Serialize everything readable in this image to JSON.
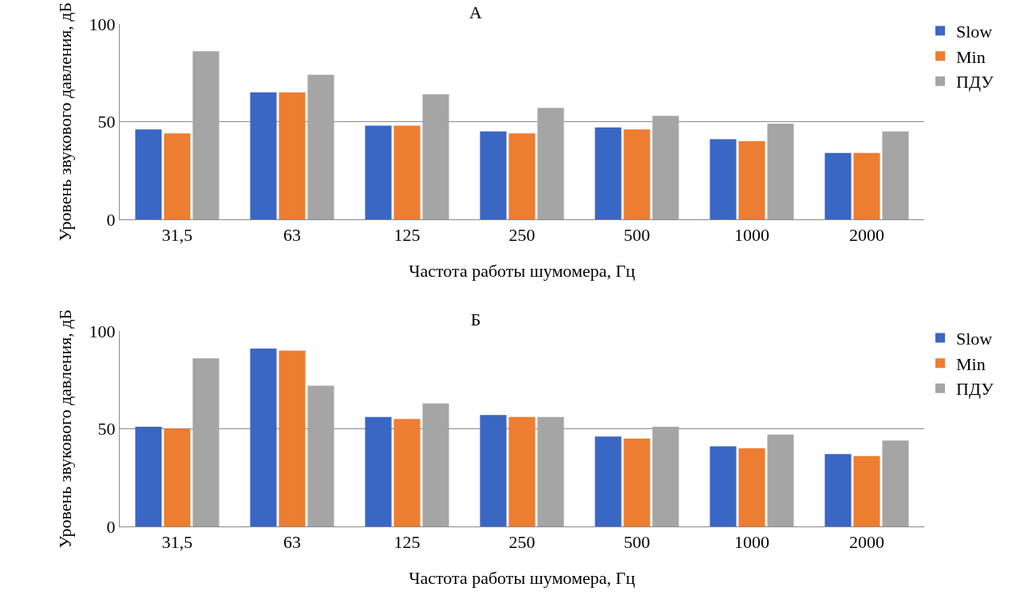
{
  "chart_data": [
    {
      "type": "bar",
      "title": "А",
      "xlabel": "Частота работы шумомера, Гц",
      "ylabel": "Уровень звукового давления, дБ",
      "categories": [
        "31,5",
        "63",
        "125",
        "250",
        "500",
        "1000",
        "2000"
      ],
      "ylim": [
        0,
        100
      ],
      "yticks": [
        0,
        50,
        100
      ],
      "grid": "y",
      "legend": "top right",
      "series": [
        {
          "name": "Slow",
          "color": "#3a66c4",
          "values": [
            46,
            65,
            48,
            45,
            47,
            41,
            34
          ]
        },
        {
          "name": "Min",
          "color": "#ed7d31",
          "values": [
            44,
            65,
            48,
            44,
            46,
            40,
            34
          ]
        },
        {
          "name": "ПДУ",
          "color": "#a5a5a5",
          "values": [
            86,
            74,
            64,
            57,
            53,
            49,
            45
          ]
        }
      ]
    },
    {
      "type": "bar",
      "title": "Б",
      "xlabel": "Частота работы шумомера, Гц",
      "ylabel": "Уровень звукового давления, дБ",
      "categories": [
        "31,5",
        "63",
        "125",
        "250",
        "500",
        "1000",
        "2000"
      ],
      "ylim": [
        0,
        100
      ],
      "yticks": [
        0,
        50,
        100
      ],
      "grid": "y",
      "legend": "top right",
      "series": [
        {
          "name": "Slow",
          "color": "#3a66c4",
          "values": [
            51,
            91,
            56,
            57,
            46,
            41,
            37
          ]
        },
        {
          "name": "Min",
          "color": "#ed7d31",
          "values": [
            50,
            90,
            55,
            56,
            45,
            40,
            36
          ]
        },
        {
          "name": "ПДУ",
          "color": "#a5a5a5",
          "values": [
            86,
            72,
            63,
            56,
            51,
            47,
            44
          ]
        }
      ]
    }
  ]
}
